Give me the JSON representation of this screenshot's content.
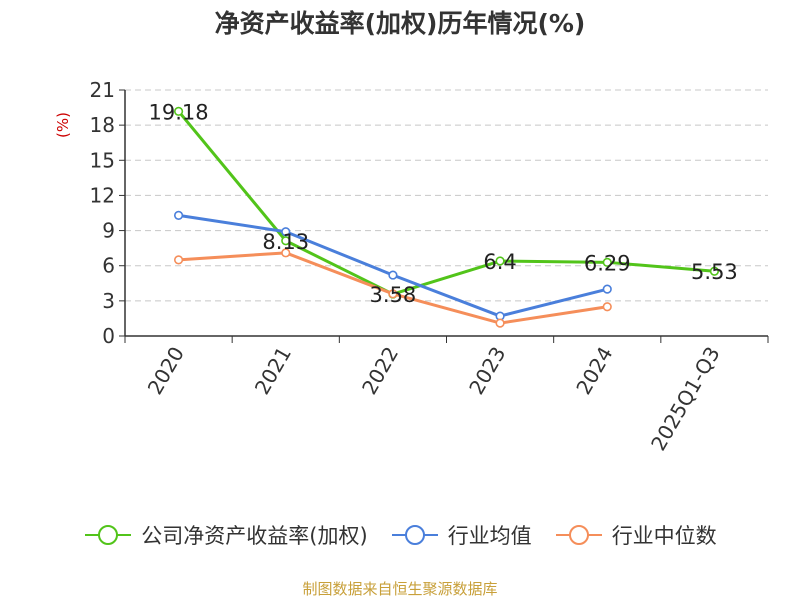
{
  "title": "净资产收益率(加权)历年情况(%)",
  "source": "制图数据来自恒生聚源数据库",
  "chart_data": {
    "type": "line",
    "ylabel": "(%)",
    "ylim": [
      0,
      21
    ],
    "yticks": [
      0,
      3,
      6,
      9,
      12,
      15,
      18,
      21
    ],
    "grid": true,
    "legend_position": "bottom",
    "categories": [
      "2020",
      "2021",
      "2022",
      "2023",
      "2024",
      "2025Q1-Q3"
    ],
    "series": [
      {
        "name": "公司净资产收益率(加权)",
        "color": "#52c41a",
        "values": [
          19.18,
          8.13,
          3.58,
          6.4,
          6.29,
          5.53
        ],
        "labels": [
          "19.18",
          "8.13",
          "3.58",
          "6.4",
          "6.29",
          "5.53"
        ]
      },
      {
        "name": "行业均值",
        "color": "#4a7fdb",
        "values": [
          10.3,
          8.9,
          5.2,
          1.7,
          4.0,
          null
        ]
      },
      {
        "name": "行业中位数",
        "color": "#f58e5a",
        "values": [
          6.5,
          7.1,
          3.6,
          1.1,
          2.5,
          null
        ]
      }
    ]
  }
}
